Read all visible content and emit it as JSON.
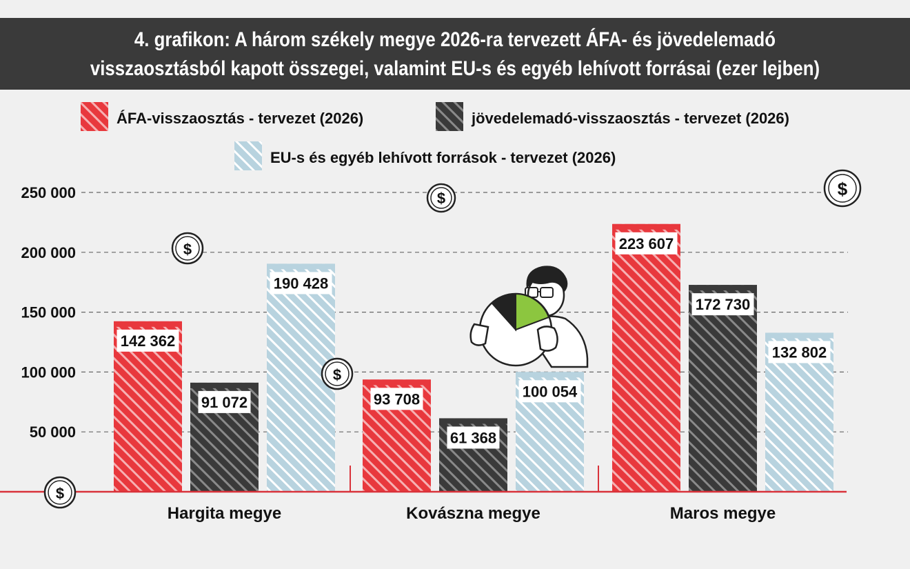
{
  "chart_data": {
    "type": "bar",
    "title_lines": [
      "4. grafikon: A három székely megye 2026-ra tervezett ÁFA- és jövedelemadó",
      "visszaosztásból kapott összegei, valamint EU-s és egyéb lehívott forrásai (ezer lejben)"
    ],
    "categories": [
      "Hargita megye",
      "Kovászna megye",
      "Maros megye"
    ],
    "series": [
      {
        "name": "ÁFA-visszaosztás - tervezet (2026)",
        "values": [
          142362,
          93708,
          223607
        ],
        "labels": [
          "142 362",
          "93 708",
          "223 607"
        ],
        "color": "#e8383d"
      },
      {
        "name": "jövedelemadó-visszaosztás - tervezet (2026)",
        "values": [
          91072,
          61368,
          172730
        ],
        "labels": [
          "91 072",
          "61 368",
          "172 730"
        ],
        "color": "#3a3a3a"
      },
      {
        "name": "EU-s és egyéb lehívott források - tervezet (2026)",
        "values": [
          190428,
          100054,
          132802
        ],
        "labels": [
          "190 428",
          "100 054",
          "132 802"
        ],
        "color": "#b8d3df"
      }
    ],
    "ylim": [
      0,
      250000
    ],
    "yticks": [
      50000,
      100000,
      150000,
      200000,
      250000
    ],
    "ytick_labels": [
      "50 000",
      "100 000",
      "150 000",
      "200 000",
      "250 000"
    ],
    "grid": true,
    "legend_placement": "top",
    "axis_color": "#d9323a"
  },
  "decor": {
    "dollar_symbol": "$"
  }
}
